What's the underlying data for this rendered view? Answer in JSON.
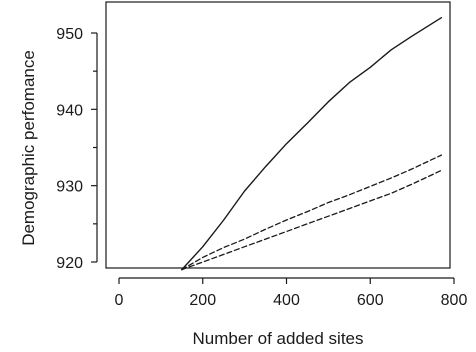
{
  "chart_data": {
    "type": "line",
    "title": "",
    "xlabel": "Number of added sites",
    "ylabel": "Demographic perfomance",
    "xlim": [
      0,
      800
    ],
    "ylim": [
      918,
      953
    ],
    "x_ticks": [
      "0",
      "200",
      "400",
      "600",
      "800"
    ],
    "y_ticks": [
      "920",
      "930",
      "940",
      "950"
    ],
    "y_minor_ticks": [
      925,
      935,
      945
    ],
    "grid": false,
    "legend": "none",
    "series": [
      {
        "style": "solid",
        "color": "#1a1a1a",
        "points": [
          [
            150,
            919.0
          ],
          [
            200,
            922.0
          ],
          [
            250,
            925.5
          ],
          [
            300,
            929.3
          ],
          [
            350,
            932.5
          ],
          [
            400,
            935.5
          ],
          [
            450,
            938.2
          ],
          [
            500,
            941.0
          ],
          [
            550,
            943.5
          ],
          [
            600,
            945.5
          ],
          [
            650,
            947.8
          ],
          [
            700,
            949.6
          ],
          [
            770,
            952.0
          ]
        ]
      },
      {
        "style": "dashed",
        "color": "#1a1a1a",
        "points": [
          [
            150,
            919.0
          ],
          [
            200,
            920.6
          ],
          [
            250,
            921.9
          ],
          [
            300,
            923.0
          ],
          [
            350,
            924.3
          ],
          [
            400,
            925.5
          ],
          [
            450,
            926.6
          ],
          [
            500,
            927.8
          ],
          [
            550,
            928.8
          ],
          [
            600,
            929.9
          ],
          [
            650,
            931.0
          ],
          [
            700,
            932.2
          ],
          [
            770,
            934.0
          ]
        ]
      },
      {
        "style": "dashed",
        "color": "#1a1a1a",
        "points": [
          [
            150,
            919.0
          ],
          [
            200,
            920.0
          ],
          [
            250,
            921.0
          ],
          [
            300,
            922.0
          ],
          [
            350,
            923.0
          ],
          [
            400,
            924.0
          ],
          [
            450,
            925.0
          ],
          [
            500,
            926.0
          ],
          [
            550,
            927.0
          ],
          [
            600,
            928.0
          ],
          [
            650,
            929.0
          ],
          [
            700,
            930.2
          ],
          [
            770,
            932.0
          ]
        ]
      }
    ]
  }
}
